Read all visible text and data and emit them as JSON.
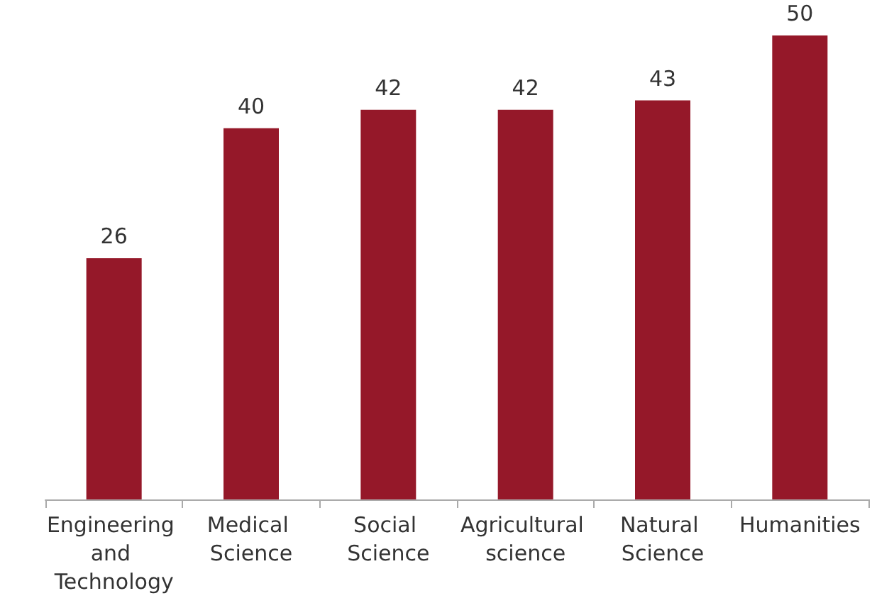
{
  "chart_data": {
    "type": "bar",
    "categories": [
      "Engineering and Technology",
      "Medical Science",
      "Social Science",
      "Agricultural science",
      "Natural Science",
      "Humanities"
    ],
    "values": [
      26,
      40,
      42,
      42,
      43,
      50
    ],
    "color": "#951829",
    "data_labels": true
  }
}
